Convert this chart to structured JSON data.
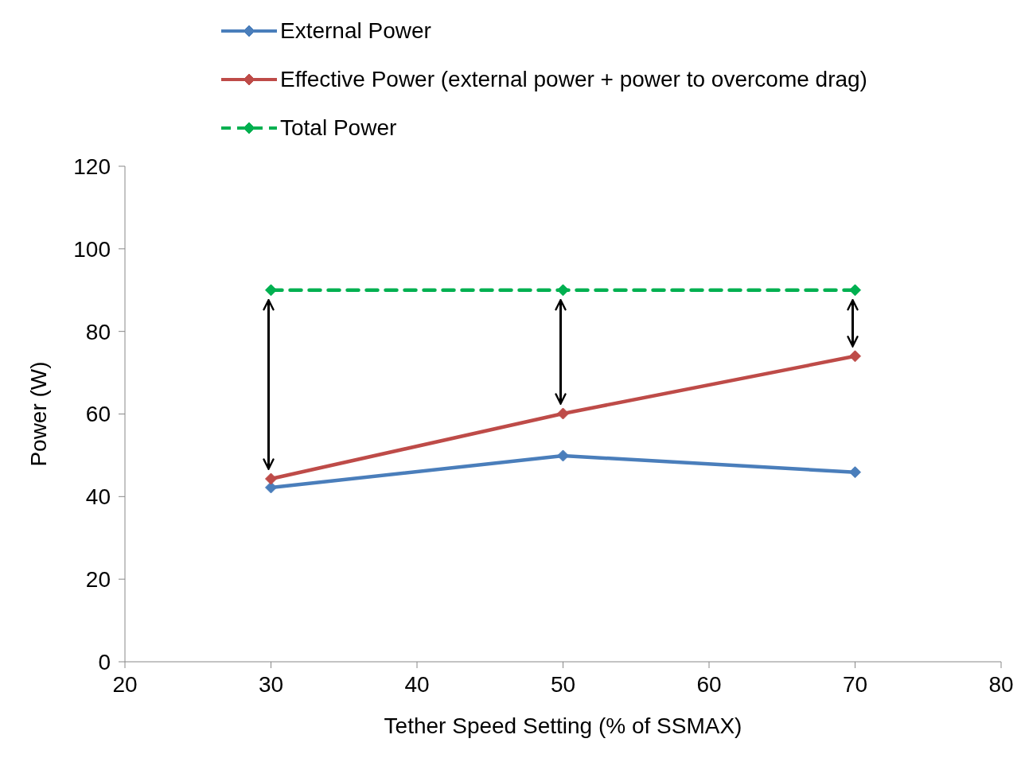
{
  "chart_data": {
    "type": "line",
    "xlabel": "Tether Speed Setting (% of SSMAX)",
    "ylabel": "Power (W)",
    "x": [
      30,
      50,
      70
    ],
    "series": [
      {
        "name": "External Power",
        "color": "#4a7ebb",
        "values": [
          42.2,
          49.9,
          45.9
        ]
      },
      {
        "name": "Effective Power (external power + power to overcome drag)",
        "color": "#be4b48",
        "values": [
          44.3,
          60.1,
          74.0
        ]
      },
      {
        "name": "Total Power",
        "color": "#00b050",
        "values": [
          90,
          90,
          90
        ],
        "line_style": "dashed"
      }
    ],
    "xlim": [
      20,
      80
    ],
    "xticks": [
      20,
      30,
      40,
      50,
      60,
      70,
      80
    ],
    "ylim": [
      0,
      120
    ],
    "yticks": [
      0,
      20,
      40,
      60,
      80,
      100,
      120
    ],
    "grid": false,
    "legend": "top",
    "marker": "diamond",
    "line_style": "solid"
  }
}
